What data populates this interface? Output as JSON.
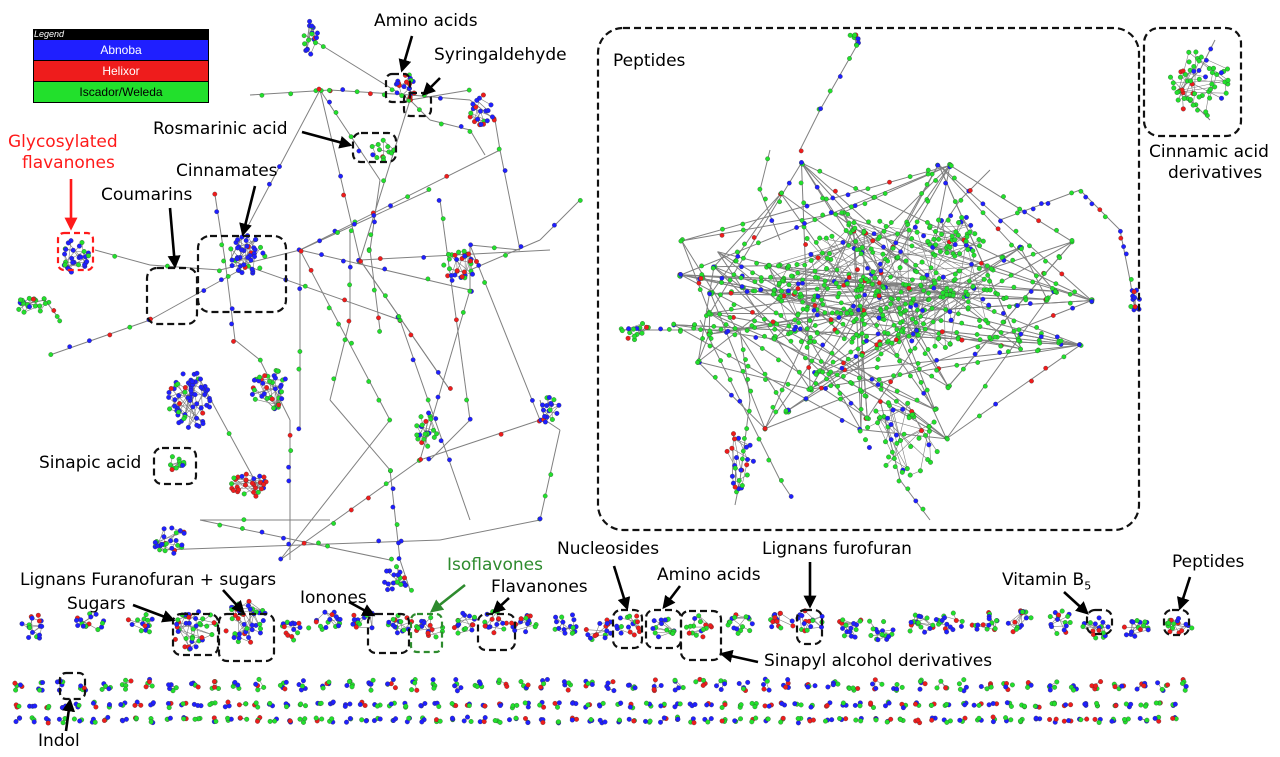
{
  "colors": {
    "abnoba": "#1f1fff",
    "helixor": "#ee1c1c",
    "iscador": "#22e02c",
    "edge": "#808080",
    "box": "#111111",
    "red_label": "#ff1a1a",
    "green_label": "#2e8b2e"
  },
  "legend": {
    "title": "Legend",
    "items": [
      {
        "label": "Abnoba",
        "color": "#1f1fff"
      },
      {
        "label": "Helixor",
        "color": "#ee1c1c"
      },
      {
        "label": "Iscador/Weleda",
        "color": "#22e02c"
      }
    ]
  },
  "labels": {
    "amino_acids_top": "Amino acids",
    "syringaldehyde": "Syringaldehyde",
    "peptides_big": "Peptides",
    "rosmarinic_acid": "Rosmarinic acid",
    "glycosylated_flavanones_1": "Glycosylated",
    "glycosylated_flavanones_2": "flavanones",
    "cinnamates": "Cinnamates",
    "coumarins": "Coumarins",
    "cinnamic_acid_derivatives_1": "Cinnamic acid",
    "cinnamic_acid_derivatives_2": "derivatives",
    "sinapic_acid": "Sinapic acid",
    "lignans_furanofuran_sugars": "Lignans Furanofuran + sugars",
    "sugars": "Sugars",
    "ionones": "Ionones",
    "isoflavones": "Isoflavones",
    "flavanones": "Flavanones",
    "nucleosides": "Nucleosides",
    "amino_acids_bottom": "Amino acids",
    "lignans_furofuran": "Lignans furofuran",
    "vitamin_b5": "Vitamin B",
    "vitamin_b5_sub": "5",
    "peptides_small": "Peptides",
    "sinapyl_alcohol_derivatives": "Sinapyl alcohol derivatives",
    "indol": "Indol"
  }
}
